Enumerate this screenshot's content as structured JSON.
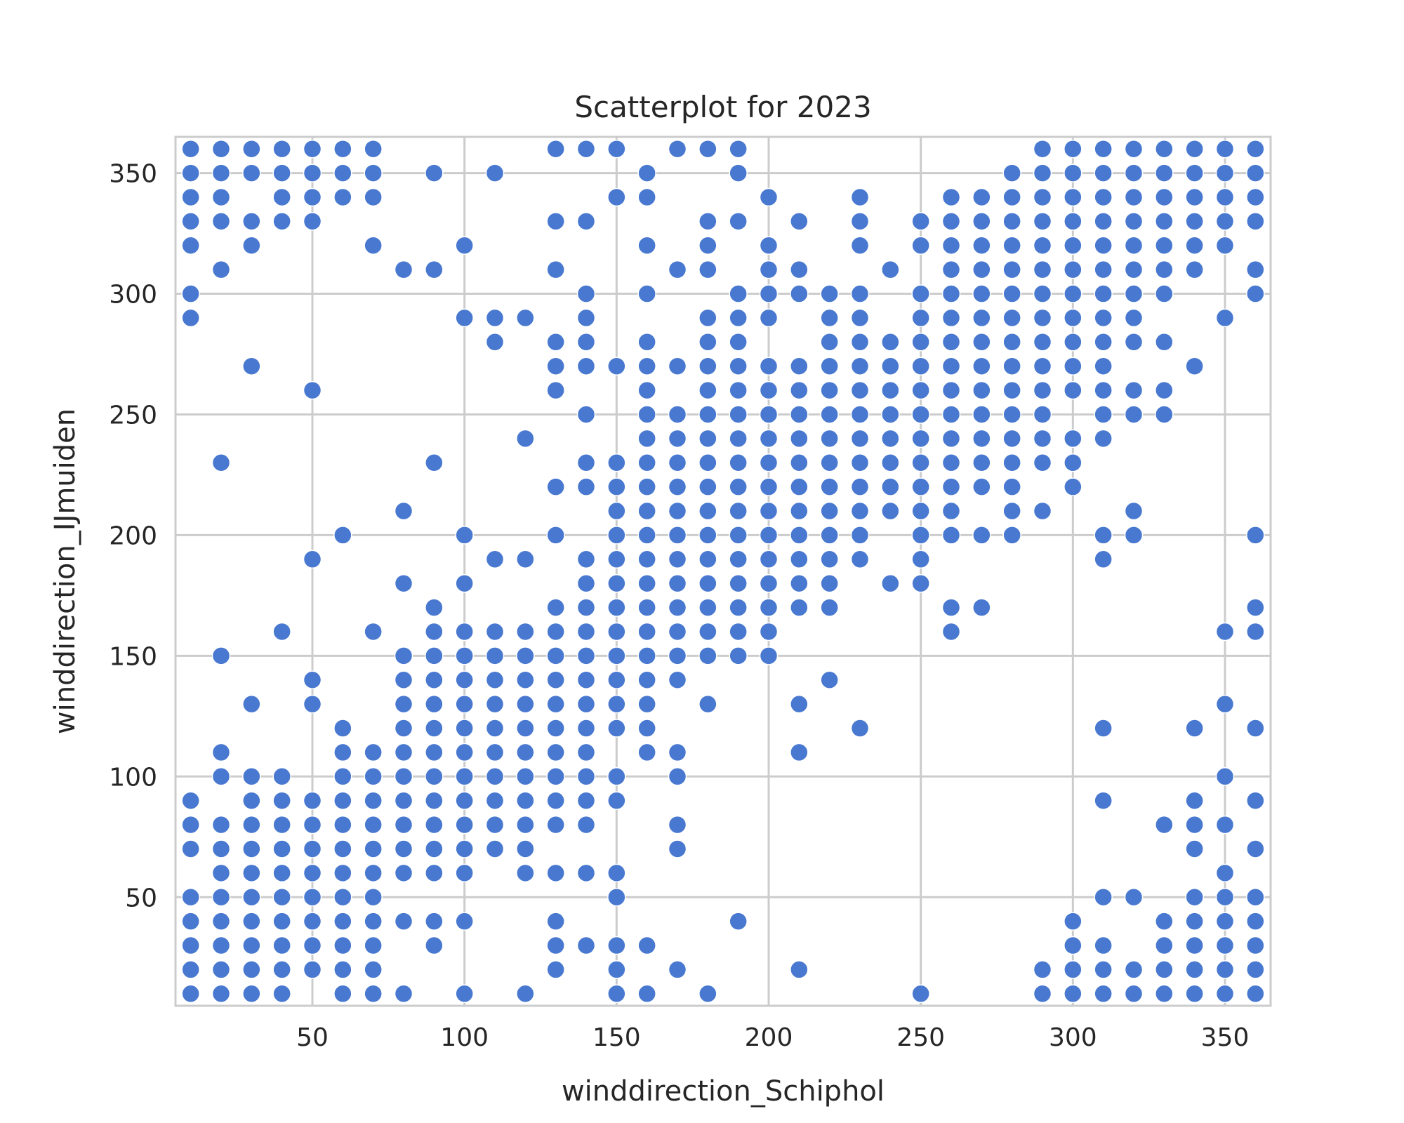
{
  "chart_data": {
    "type": "scatter",
    "title": "Scatterplot for 2023",
    "xlabel": "winddirection_Schiphol",
    "ylabel": "winddirection_IJmuiden",
    "xlim": [
      5,
      365
    ],
    "ylim": [
      5,
      365
    ],
    "xticks": [
      50,
      100,
      150,
      200,
      250,
      300,
      350
    ],
    "yticks": [
      50,
      100,
      150,
      200,
      250,
      300,
      350
    ],
    "grid": true,
    "marker_color": "#4878d0",
    "series": [
      {
        "points": {
          "10": [
            10,
            20,
            30,
            40,
            50,
            70,
            80,
            90,
            290,
            300,
            320,
            330,
            340,
            350,
            360
          ],
          "20": [
            10,
            20,
            30,
            40,
            50,
            60,
            70,
            80,
            100,
            110,
            150,
            230,
            310,
            330,
            340,
            350,
            360
          ],
          "30": [
            10,
            20,
            30,
            40,
            50,
            60,
            70,
            80,
            90,
            100,
            130,
            270,
            320,
            330,
            350,
            360
          ],
          "40": [
            10,
            20,
            30,
            40,
            50,
            60,
            70,
            80,
            90,
            100,
            160,
            330,
            340,
            350,
            360
          ],
          "50": [
            20,
            30,
            40,
            50,
            60,
            70,
            80,
            90,
            130,
            140,
            190,
            260,
            330,
            340,
            350,
            360
          ],
          "60": [
            10,
            20,
            30,
            40,
            50,
            60,
            70,
            80,
            90,
            100,
            110,
            120,
            200,
            340,
            350,
            360
          ],
          "70": [
            10,
            20,
            30,
            40,
            50,
            60,
            70,
            80,
            90,
            100,
            110,
            160,
            320,
            340,
            350,
            360
          ],
          "80": [
            10,
            40,
            60,
            70,
            80,
            90,
            100,
            110,
            120,
            130,
            140,
            150,
            180,
            210,
            310
          ],
          "90": [
            30,
            40,
            60,
            70,
            80,
            90,
            100,
            110,
            120,
            130,
            140,
            150,
            160,
            170,
            230,
            310,
            350
          ],
          "100": [
            10,
            40,
            60,
            70,
            80,
            90,
            100,
            110,
            120,
            130,
            140,
            150,
            160,
            180,
            200,
            290,
            320
          ],
          "110": [
            70,
            80,
            90,
            100,
            110,
            120,
            130,
            140,
            150,
            160,
            190,
            280,
            290,
            350
          ],
          "120": [
            10,
            60,
            70,
            80,
            90,
            100,
            110,
            120,
            130,
            140,
            150,
            160,
            190,
            240,
            290
          ],
          "130": [
            20,
            30,
            40,
            60,
            80,
            90,
            100,
            110,
            120,
            130,
            140,
            150,
            160,
            170,
            200,
            220,
            260,
            270,
            280,
            310,
            330,
            360
          ],
          "140": [
            30,
            60,
            80,
            90,
            100,
            110,
            120,
            130,
            140,
            150,
            160,
            170,
            180,
            190,
            220,
            230,
            250,
            270,
            280,
            290,
            300,
            330,
            360
          ],
          "150": [
            10,
            20,
            30,
            50,
            60,
            90,
            100,
            120,
            130,
            140,
            150,
            160,
            170,
            180,
            190,
            200,
            210,
            220,
            230,
            270,
            340,
            360
          ],
          "160": [
            10,
            30,
            110,
            120,
            130,
            140,
            150,
            160,
            170,
            180,
            190,
            200,
            210,
            220,
            230,
            240,
            250,
            260,
            270,
            280,
            300,
            320,
            340,
            350
          ],
          "170": [
            20,
            70,
            80,
            100,
            110,
            140,
            150,
            160,
            170,
            180,
            190,
            200,
            210,
            220,
            230,
            240,
            250,
            270,
            310,
            360
          ],
          "180": [
            10,
            130,
            150,
            160,
            170,
            180,
            190,
            200,
            210,
            220,
            230,
            240,
            250,
            260,
            270,
            280,
            290,
            310,
            320,
            330,
            360
          ],
          "190": [
            40,
            150,
            160,
            170,
            180,
            190,
            200,
            210,
            220,
            230,
            240,
            250,
            260,
            270,
            280,
            290,
            300,
            330,
            350,
            360
          ],
          "200": [
            150,
            160,
            170,
            180,
            190,
            200,
            210,
            220,
            230,
            240,
            250,
            260,
            270,
            290,
            300,
            310,
            320,
            340
          ],
          "210": [
            20,
            110,
            130,
            170,
            180,
            190,
            200,
            210,
            220,
            230,
            240,
            250,
            260,
            270,
            300,
            310,
            330
          ],
          "220": [
            140,
            170,
            180,
            190,
            200,
            210,
            220,
            230,
            240,
            250,
            260,
            270,
            280,
            290,
            300
          ],
          "230": [
            120,
            190,
            200,
            210,
            220,
            230,
            240,
            250,
            260,
            270,
            280,
            290,
            300,
            320,
            330,
            340
          ],
          "240": [
            180,
            210,
            220,
            230,
            240,
            250,
            260,
            270,
            280,
            310
          ],
          "250": [
            10,
            180,
            190,
            200,
            210,
            220,
            230,
            240,
            250,
            260,
            270,
            280,
            290,
            300,
            320,
            330
          ],
          "260": [
            160,
            170,
            200,
            210,
            220,
            230,
            240,
            250,
            260,
            270,
            280,
            290,
            300,
            310,
            320,
            330,
            340
          ],
          "270": [
            170,
            200,
            220,
            230,
            240,
            250,
            260,
            270,
            280,
            290,
            300,
            310,
            320,
            330,
            340
          ],
          "280": [
            200,
            210,
            220,
            230,
            240,
            250,
            260,
            270,
            280,
            290,
            300,
            310,
            320,
            330,
            340,
            350
          ],
          "290": [
            10,
            20,
            210,
            230,
            240,
            250,
            260,
            270,
            280,
            290,
            300,
            310,
            320,
            330,
            340,
            350,
            360
          ],
          "300": [
            10,
            20,
            30,
            40,
            220,
            230,
            240,
            260,
            270,
            280,
            290,
            300,
            310,
            320,
            330,
            340,
            350,
            360
          ],
          "310": [
            10,
            20,
            30,
            50,
            90,
            120,
            190,
            200,
            240,
            250,
            260,
            270,
            280,
            290,
            300,
            310,
            320,
            330,
            340,
            350,
            360
          ],
          "320": [
            10,
            20,
            50,
            200,
            210,
            250,
            260,
            280,
            290,
            300,
            310,
            320,
            330,
            340,
            350,
            360
          ],
          "330": [
            10,
            20,
            30,
            40,
            80,
            250,
            260,
            280,
            300,
            310,
            320,
            330,
            340,
            350,
            360
          ],
          "340": [
            10,
            20,
            30,
            40,
            50,
            70,
            80,
            90,
            120,
            270,
            310,
            320,
            330,
            340,
            350,
            360
          ],
          "350": [
            10,
            20,
            30,
            40,
            50,
            60,
            80,
            100,
            130,
            160,
            290,
            320,
            330,
            340,
            350,
            360
          ],
          "360": [
            10,
            20,
            30,
            40,
            50,
            70,
            90,
            120,
            160,
            170,
            200,
            300,
            310,
            330,
            340,
            350,
            360
          ]
        }
      }
    ]
  }
}
